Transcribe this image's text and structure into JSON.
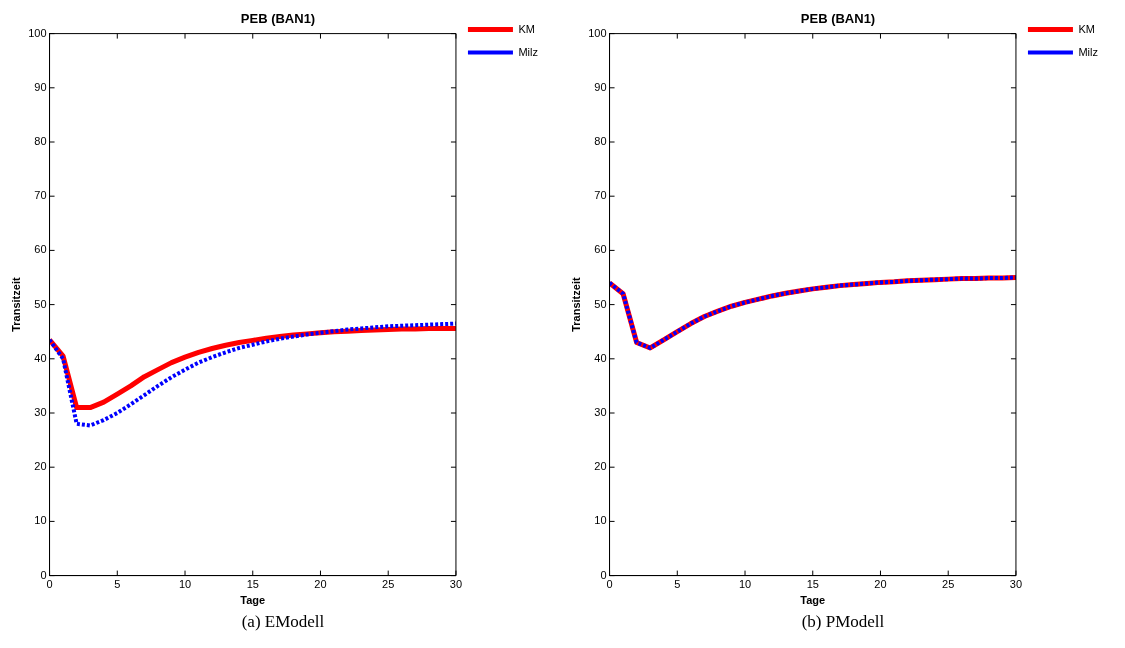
{
  "chart_data": [
    {
      "type": "line",
      "title": "PEB (BAN1)",
      "xlabel": "Tage",
      "ylabel": "Transitzeit",
      "annotations": [
        "(a) EModell"
      ],
      "legend": "top right",
      "grid": false,
      "xlim": [
        0,
        30
      ],
      "ylim": [
        0,
        100
      ],
      "xticks": [
        0,
        5,
        10,
        15,
        20,
        25,
        30
      ],
      "yticks": [
        0,
        10,
        20,
        30,
        40,
        50,
        60,
        70,
        80,
        90,
        100
      ],
      "x": [
        0,
        1,
        2,
        3,
        4,
        5,
        6,
        7,
        8,
        9,
        10,
        11,
        12,
        13,
        14,
        15,
        16,
        17,
        18,
        19,
        20,
        21,
        22,
        23,
        24,
        25,
        26,
        27,
        28,
        29,
        30
      ],
      "series": [
        {
          "name": "KM",
          "color": "#ff0000",
          "line_style": "solid",
          "values": [
            43.5,
            40.5,
            31,
            31,
            32,
            33.5,
            35,
            36.7,
            38,
            39.3,
            40.3,
            41.2,
            41.9,
            42.5,
            43,
            43.4,
            43.8,
            44.1,
            44.4,
            44.6,
            44.8,
            45,
            45.1,
            45.2,
            45.3,
            45.4,
            45.5,
            45.5,
            45.6,
            45.6,
            45.6
          ]
        },
        {
          "name": "Milz",
          "color": "#0000ff",
          "line_style": "dotted",
          "values": [
            43.5,
            40,
            28,
            27.7,
            28.7,
            30,
            31.6,
            33.3,
            35,
            36.6,
            38,
            39.3,
            40.3,
            41.2,
            42,
            42.6,
            43.2,
            43.7,
            44.1,
            44.5,
            44.8,
            45.1,
            45.4,
            45.6,
            45.8,
            46,
            46.1,
            46.2,
            46.3,
            46.4,
            46.5
          ]
        }
      ]
    },
    {
      "type": "line",
      "title": "PEB (BAN1)",
      "xlabel": "Tage",
      "ylabel": "Transitzeit",
      "annotations": [
        "(b) PModell"
      ],
      "legend": "top right",
      "grid": false,
      "xlim": [
        0,
        30
      ],
      "ylim": [
        0,
        100
      ],
      "xticks": [
        0,
        5,
        10,
        15,
        20,
        25,
        30
      ],
      "yticks": [
        0,
        10,
        20,
        30,
        40,
        50,
        60,
        70,
        80,
        90,
        100
      ],
      "x": [
        0,
        1,
        2,
        3,
        4,
        5,
        6,
        7,
        8,
        9,
        10,
        11,
        12,
        13,
        14,
        15,
        16,
        17,
        18,
        19,
        20,
        21,
        22,
        23,
        24,
        25,
        26,
        27,
        28,
        29,
        30
      ],
      "series": [
        {
          "name": "KM",
          "color": "#ff0000",
          "line_style": "solid",
          "values": [
            54,
            52,
            43,
            42,
            43.5,
            45,
            46.5,
            47.8,
            48.8,
            49.7,
            50.4,
            51,
            51.6,
            52.1,
            52.5,
            52.9,
            53.2,
            53.5,
            53.7,
            53.9,
            54.1,
            54.2,
            54.4,
            54.5,
            54.6,
            54.7,
            54.8,
            54.8,
            54.9,
            54.9,
            55
          ]
        },
        {
          "name": "Milz",
          "color": "#0000ff",
          "line_style": "dotted",
          "values": [
            54,
            52,
            43,
            42,
            43.5,
            45,
            46.5,
            47.8,
            48.8,
            49.7,
            50.4,
            51,
            51.6,
            52.1,
            52.5,
            52.9,
            53.2,
            53.5,
            53.7,
            53.9,
            54.1,
            54.2,
            54.4,
            54.5,
            54.6,
            54.7,
            54.8,
            54.8,
            54.9,
            54.9,
            55
          ]
        }
      ]
    }
  ]
}
